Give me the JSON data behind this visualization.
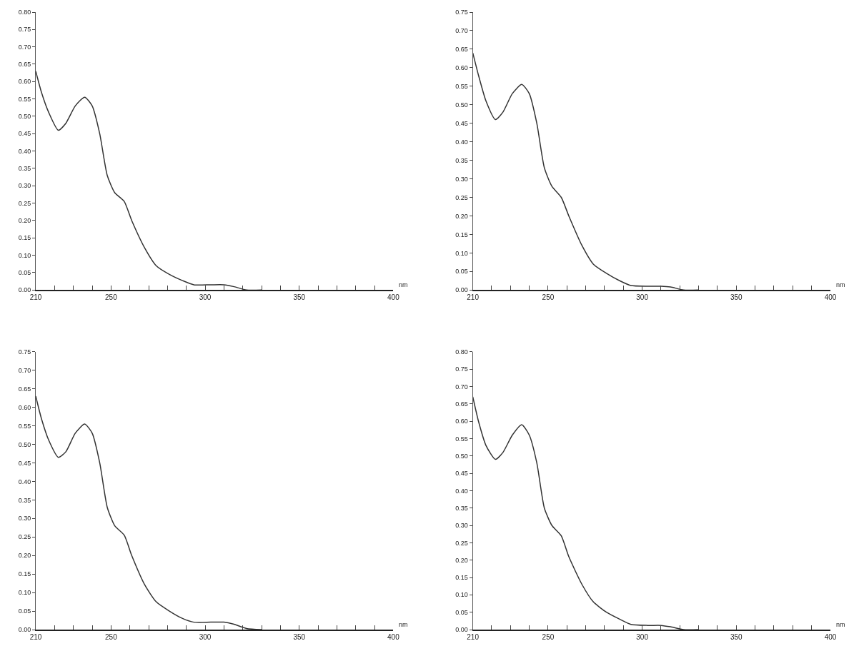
{
  "chart_data": [
    {
      "type": "line",
      "xlabel": "nm",
      "color": "#333333",
      "xlim": [
        210,
        400
      ],
      "ylim": [
        0,
        0.8
      ],
      "legend": false,
      "marker": "none",
      "line_style": "solid",
      "x": [
        210,
        213,
        217,
        222,
        226,
        231,
        236,
        240,
        244,
        248,
        252,
        257,
        261,
        268,
        274,
        281,
        288,
        294,
        303,
        310,
        315,
        322,
        330
      ],
      "values": [
        0.63,
        0.57,
        0.51,
        0.46,
        0.48,
        0.53,
        0.555,
        0.53,
        0.45,
        0.33,
        0.28,
        0.255,
        0.2,
        0.12,
        0.07,
        0.045,
        0.027,
        0.015,
        0.015,
        0.015,
        0.01,
        0,
        0
      ],
      "xticks": [
        {
          "value": 210,
          "label": "210"
        },
        {
          "value": 220,
          "label": null
        },
        {
          "value": 230,
          "label": null
        },
        {
          "value": 240,
          "label": null
        },
        {
          "value": 250,
          "label": "250"
        },
        {
          "value": 260,
          "label": null
        },
        {
          "value": 270,
          "label": null
        },
        {
          "value": 280,
          "label": null
        },
        {
          "value": 290,
          "label": null
        },
        {
          "value": 300,
          "label": "300"
        },
        {
          "value": 310,
          "label": null
        },
        {
          "value": 320,
          "label": null
        },
        {
          "value": 330,
          "label": null
        },
        {
          "value": 340,
          "label": null
        },
        {
          "value": 350,
          "label": "350"
        },
        {
          "value": 360,
          "label": null
        },
        {
          "value": 370,
          "label": null
        },
        {
          "value": 380,
          "label": null
        },
        {
          "value": 390,
          "label": null
        },
        {
          "value": 400,
          "label": "400"
        }
      ],
      "yticks": [
        {
          "value": 0,
          "label": "0.00"
        },
        {
          "value": 0.05,
          "label": "0.05"
        },
        {
          "value": 0.1,
          "label": "0.10"
        },
        {
          "value": 0.15,
          "label": "0.15"
        },
        {
          "value": 0.2,
          "label": "0.20"
        },
        {
          "value": 0.25,
          "label": "0.25"
        },
        {
          "value": 0.3,
          "label": "0.30"
        },
        {
          "value": 0.35,
          "label": "0.35"
        },
        {
          "value": 0.4,
          "label": "0.40"
        },
        {
          "value": 0.45,
          "label": "0.45"
        },
        {
          "value": 0.5,
          "label": "0.50"
        },
        {
          "value": 0.55,
          "label": "0.55"
        },
        {
          "value": 0.6,
          "label": "0.60"
        },
        {
          "value": 0.65,
          "label": "0.65"
        },
        {
          "value": 0.7,
          "label": "0.70"
        },
        {
          "value": 0.75,
          "label": "0.75"
        },
        {
          "value": 0.8,
          "label": "0.80"
        }
      ]
    },
    {
      "type": "line",
      "xlabel": "nm",
      "color": "#333333",
      "xlim": [
        210,
        400
      ],
      "ylim": [
        0,
        0.75
      ],
      "legend": false,
      "marker": "none",
      "line_style": "solid",
      "x": [
        210,
        213,
        217,
        222,
        226,
        231,
        236,
        240,
        244,
        248,
        252,
        257,
        261,
        268,
        274,
        281,
        288,
        294,
        303,
        310,
        315,
        322,
        330
      ],
      "values": [
        0.64,
        0.58,
        0.51,
        0.46,
        0.48,
        0.53,
        0.555,
        0.53,
        0.45,
        0.33,
        0.28,
        0.25,
        0.2,
        0.12,
        0.07,
        0.045,
        0.025,
        0.012,
        0.01,
        0.01,
        0.008,
        0,
        0
      ],
      "xticks": [
        {
          "value": 210,
          "label": "210"
        },
        {
          "value": 220,
          "label": null
        },
        {
          "value": 230,
          "label": null
        },
        {
          "value": 240,
          "label": null
        },
        {
          "value": 250,
          "label": "250"
        },
        {
          "value": 260,
          "label": null
        },
        {
          "value": 270,
          "label": null
        },
        {
          "value": 280,
          "label": null
        },
        {
          "value": 290,
          "label": null
        },
        {
          "value": 300,
          "label": "300"
        },
        {
          "value": 310,
          "label": null
        },
        {
          "value": 320,
          "label": null
        },
        {
          "value": 330,
          "label": null
        },
        {
          "value": 340,
          "label": null
        },
        {
          "value": 350,
          "label": "350"
        },
        {
          "value": 360,
          "label": null
        },
        {
          "value": 370,
          "label": null
        },
        {
          "value": 380,
          "label": null
        },
        {
          "value": 390,
          "label": null
        },
        {
          "value": 400,
          "label": "400"
        }
      ],
      "yticks": [
        {
          "value": 0,
          "label": "0.00"
        },
        {
          "value": 0.05,
          "label": "0.05"
        },
        {
          "value": 0.1,
          "label": "0.10"
        },
        {
          "value": 0.15,
          "label": "0.15"
        },
        {
          "value": 0.2,
          "label": "0.20"
        },
        {
          "value": 0.25,
          "label": "0.25"
        },
        {
          "value": 0.3,
          "label": "0.30"
        },
        {
          "value": 0.35,
          "label": "0.35"
        },
        {
          "value": 0.4,
          "label": "0.40"
        },
        {
          "value": 0.45,
          "label": "0.45"
        },
        {
          "value": 0.5,
          "label": "0.50"
        },
        {
          "value": 0.55,
          "label": "0.55"
        },
        {
          "value": 0.6,
          "label": "0.60"
        },
        {
          "value": 0.65,
          "label": "0.65"
        },
        {
          "value": 0.7,
          "label": "0.70"
        },
        {
          "value": 0.75,
          "label": "0.75"
        }
      ]
    },
    {
      "type": "line",
      "xlabel": "nm",
      "color": "#333333",
      "xlim": [
        210,
        400
      ],
      "ylim": [
        0,
        0.75
      ],
      "legend": false,
      "marker": "none",
      "line_style": "solid",
      "x": [
        210,
        213,
        217,
        222,
        226,
        231,
        236,
        240,
        244,
        248,
        252,
        257,
        261,
        268,
        274,
        281,
        288,
        294,
        303,
        310,
        315,
        322,
        330
      ],
      "values": [
        0.63,
        0.57,
        0.51,
        0.465,
        0.48,
        0.53,
        0.555,
        0.53,
        0.45,
        0.33,
        0.28,
        0.255,
        0.2,
        0.12,
        0.075,
        0.05,
        0.03,
        0.02,
        0.02,
        0.02,
        0.015,
        0.003,
        0
      ],
      "xticks": [
        {
          "value": 210,
          "label": "210"
        },
        {
          "value": 220,
          "label": null
        },
        {
          "value": 230,
          "label": null
        },
        {
          "value": 240,
          "label": null
        },
        {
          "value": 250,
          "label": "250"
        },
        {
          "value": 260,
          "label": null
        },
        {
          "value": 270,
          "label": null
        },
        {
          "value": 280,
          "label": null
        },
        {
          "value": 290,
          "label": null
        },
        {
          "value": 300,
          "label": "300"
        },
        {
          "value": 310,
          "label": null
        },
        {
          "value": 320,
          "label": null
        },
        {
          "value": 330,
          "label": null
        },
        {
          "value": 340,
          "label": null
        },
        {
          "value": 350,
          "label": "350"
        },
        {
          "value": 360,
          "label": null
        },
        {
          "value": 370,
          "label": null
        },
        {
          "value": 380,
          "label": null
        },
        {
          "value": 390,
          "label": null
        },
        {
          "value": 400,
          "label": "400"
        }
      ],
      "yticks": [
        {
          "value": 0,
          "label": "0.00"
        },
        {
          "value": 0.05,
          "label": "0.05"
        },
        {
          "value": 0.1,
          "label": "0.10"
        },
        {
          "value": 0.15,
          "label": "0.15"
        },
        {
          "value": 0.2,
          "label": "0.20"
        },
        {
          "value": 0.25,
          "label": "0.25"
        },
        {
          "value": 0.3,
          "label": "0.30"
        },
        {
          "value": 0.35,
          "label": "0.35"
        },
        {
          "value": 0.4,
          "label": "0.40"
        },
        {
          "value": 0.45,
          "label": "0.45"
        },
        {
          "value": 0.5,
          "label": "0.50"
        },
        {
          "value": 0.55,
          "label": "0.55"
        },
        {
          "value": 0.6,
          "label": "0.60"
        },
        {
          "value": 0.65,
          "label": "0.65"
        },
        {
          "value": 0.7,
          "label": "0.70"
        },
        {
          "value": 0.75,
          "label": "0.75"
        }
      ]
    },
    {
      "type": "line",
      "xlabel": "nm",
      "color": "#333333",
      "xlim": [
        210,
        400
      ],
      "ylim": [
        0,
        0.8
      ],
      "legend": false,
      "marker": "none",
      "line_style": "solid",
      "x": [
        210,
        213,
        217,
        222,
        226,
        231,
        236,
        240,
        244,
        248,
        252,
        257,
        261,
        268,
        274,
        281,
        288,
        294,
        303,
        310,
        315,
        322,
        330
      ],
      "values": [
        0.67,
        0.6,
        0.53,
        0.49,
        0.51,
        0.56,
        0.59,
        0.56,
        0.48,
        0.35,
        0.3,
        0.27,
        0.21,
        0.13,
        0.08,
        0.05,
        0.03,
        0.015,
        0.012,
        0.012,
        0.008,
        0,
        0
      ],
      "xticks": [
        {
          "value": 210,
          "label": "210"
        },
        {
          "value": 220,
          "label": null
        },
        {
          "value": 230,
          "label": null
        },
        {
          "value": 240,
          "label": null
        },
        {
          "value": 250,
          "label": "250"
        },
        {
          "value": 260,
          "label": null
        },
        {
          "value": 270,
          "label": null
        },
        {
          "value": 280,
          "label": null
        },
        {
          "value": 290,
          "label": null
        },
        {
          "value": 300,
          "label": "300"
        },
        {
          "value": 310,
          "label": null
        },
        {
          "value": 320,
          "label": null
        },
        {
          "value": 330,
          "label": null
        },
        {
          "value": 340,
          "label": null
        },
        {
          "value": 350,
          "label": "350"
        },
        {
          "value": 360,
          "label": null
        },
        {
          "value": 370,
          "label": null
        },
        {
          "value": 380,
          "label": null
        },
        {
          "value": 390,
          "label": null
        },
        {
          "value": 400,
          "label": "400"
        }
      ],
      "yticks": [
        {
          "value": 0,
          "label": "0.00"
        },
        {
          "value": 0.05,
          "label": "0.05"
        },
        {
          "value": 0.1,
          "label": "0.10"
        },
        {
          "value": 0.15,
          "label": "0.15"
        },
        {
          "value": 0.2,
          "label": "0.20"
        },
        {
          "value": 0.25,
          "label": "0.25"
        },
        {
          "value": 0.3,
          "label": "0.30"
        },
        {
          "value": 0.35,
          "label": "0.35"
        },
        {
          "value": 0.4,
          "label": "0.40"
        },
        {
          "value": 0.45,
          "label": "0.45"
        },
        {
          "value": 0.5,
          "label": "0.50"
        },
        {
          "value": 0.55,
          "label": "0.55"
        },
        {
          "value": 0.6,
          "label": "0.60"
        },
        {
          "value": 0.65,
          "label": "0.65"
        },
        {
          "value": 0.7,
          "label": "0.70"
        },
        {
          "value": 0.75,
          "label": "0.75"
        },
        {
          "value": 0.8,
          "label": "0.80"
        }
      ]
    }
  ]
}
